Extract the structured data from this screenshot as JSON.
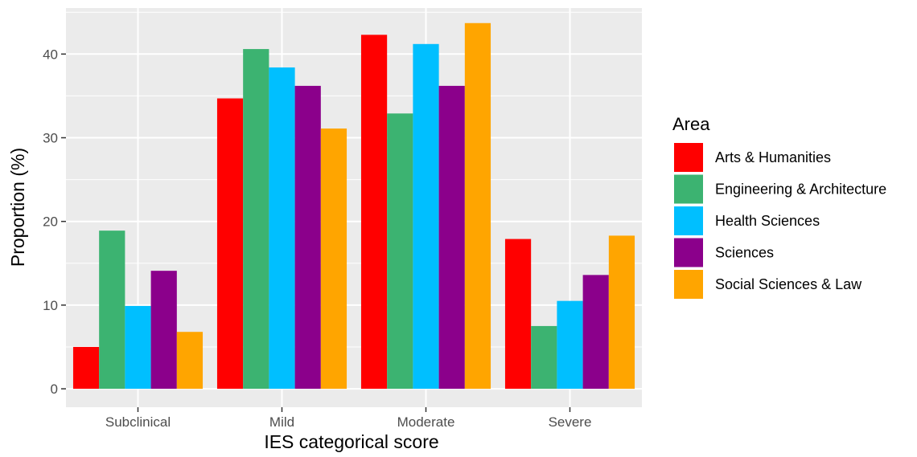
{
  "chart_data": {
    "type": "bar",
    "title": "",
    "xlabel": "IES categorical score",
    "ylabel": "Proportion (%)",
    "categories": [
      "Subclinical",
      "Mild",
      "Moderate",
      "Severe"
    ],
    "ylim": [
      -2.2,
      45.5
    ],
    "yticks": [
      0,
      10,
      20,
      30,
      40
    ],
    "grid": true,
    "legend": {
      "title": "Area",
      "position": "right"
    },
    "series": [
      {
        "name": "Arts & Humanities",
        "color": "#FF0000",
        "values": [
          5.0,
          34.7,
          42.3,
          17.9
        ]
      },
      {
        "name": "Engineering & Architecture",
        "color": "#3CB371",
        "values": [
          18.9,
          40.6,
          32.9,
          7.5
        ]
      },
      {
        "name": "Health Sciences",
        "color": "#00BFFF",
        "values": [
          9.9,
          38.4,
          41.2,
          10.5
        ]
      },
      {
        "name": "Sciences",
        "color": "#8B008B",
        "values": [
          14.1,
          36.2,
          36.2,
          13.6
        ]
      },
      {
        "name": "Social Sciences & Law",
        "color": "#FFA500",
        "values": [
          6.8,
          31.1,
          43.7,
          18.3
        ]
      }
    ]
  }
}
